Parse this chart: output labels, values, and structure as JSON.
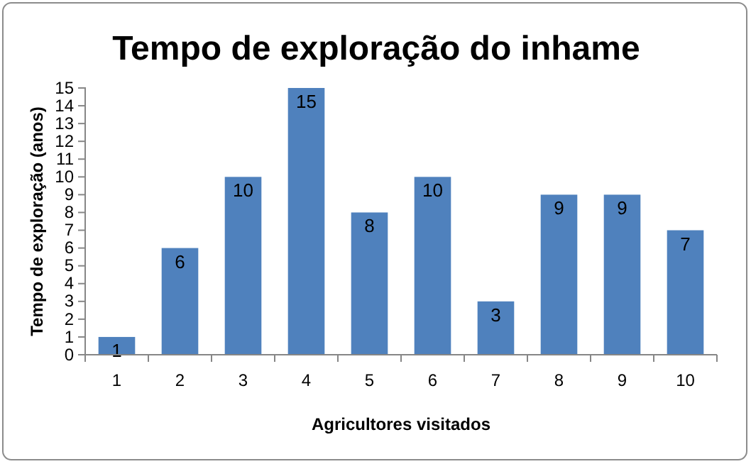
{
  "chart_data": {
    "type": "bar",
    "title": "Tempo de exploração do inhame",
    "xlabel": "Agricultores visitados",
    "ylabel": "Tempo de exploração (anos)",
    "categories": [
      "1",
      "2",
      "3",
      "4",
      "5",
      "6",
      "7",
      "8",
      "9",
      "10"
    ],
    "values": [
      1,
      6,
      10,
      15,
      8,
      10,
      3,
      9,
      9,
      7
    ],
    "color": "#4f81bd",
    "ylim": [
      0,
      15
    ],
    "yticks": [
      0,
      1,
      2,
      3,
      4,
      5,
      6,
      7,
      8,
      9,
      10,
      11,
      12,
      13,
      14,
      15
    ],
    "grid": false,
    "data_labels": true
  }
}
